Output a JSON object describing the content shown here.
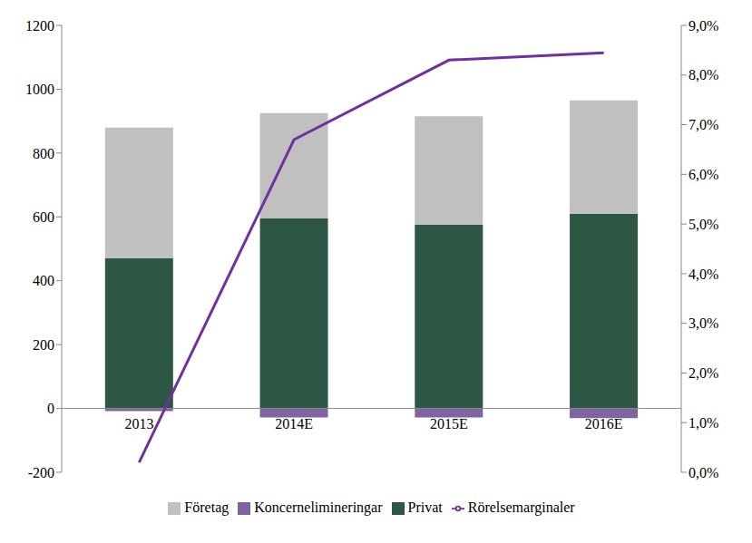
{
  "chart_data": {
    "type": "bar",
    "stacked": true,
    "categories": [
      "2013",
      "2014E",
      "2015E",
      "2016E"
    ],
    "series": [
      {
        "name": "Privat",
        "color": "#2b5744",
        "type": "bar",
        "values": [
          470,
          595,
          575,
          610
        ]
      },
      {
        "name": "Företag",
        "color": "#c0c0c0",
        "type": "bar",
        "values": [
          410,
          330,
          340,
          355
        ]
      },
      {
        "name": "Koncernelimineringar",
        "color": "#7f63a3",
        "type": "bar",
        "values": [
          -8,
          -28,
          -28,
          -30
        ]
      },
      {
        "name": "Rörelsemarginaler",
        "color": "#7030a0",
        "type": "line",
        "axis": "y2",
        "values": [
          0.2,
          6.7,
          8.3,
          8.45
        ]
      }
    ],
    "ylim": [
      -200,
      1200
    ],
    "yticks": [
      -200,
      0,
      200,
      400,
      600,
      800,
      1000,
      1200
    ],
    "y2lim": [
      0,
      9
    ],
    "y2ticks": [
      {
        "value": 0,
        "label": "0,0%"
      },
      {
        "value": 1,
        "label": "1,0%"
      },
      {
        "value": 2,
        "label": "2,0%"
      },
      {
        "value": 3,
        "label": "3,0%"
      },
      {
        "value": 4,
        "label": "4,0%"
      },
      {
        "value": 5,
        "label": "5,0%"
      },
      {
        "value": 6,
        "label": "6,0%"
      },
      {
        "value": 7,
        "label": "7,0%"
      },
      {
        "value": 8,
        "label": "8,0%"
      },
      {
        "value": 9,
        "label": "9,0%"
      }
    ],
    "grid": false,
    "legend": "bottom"
  }
}
